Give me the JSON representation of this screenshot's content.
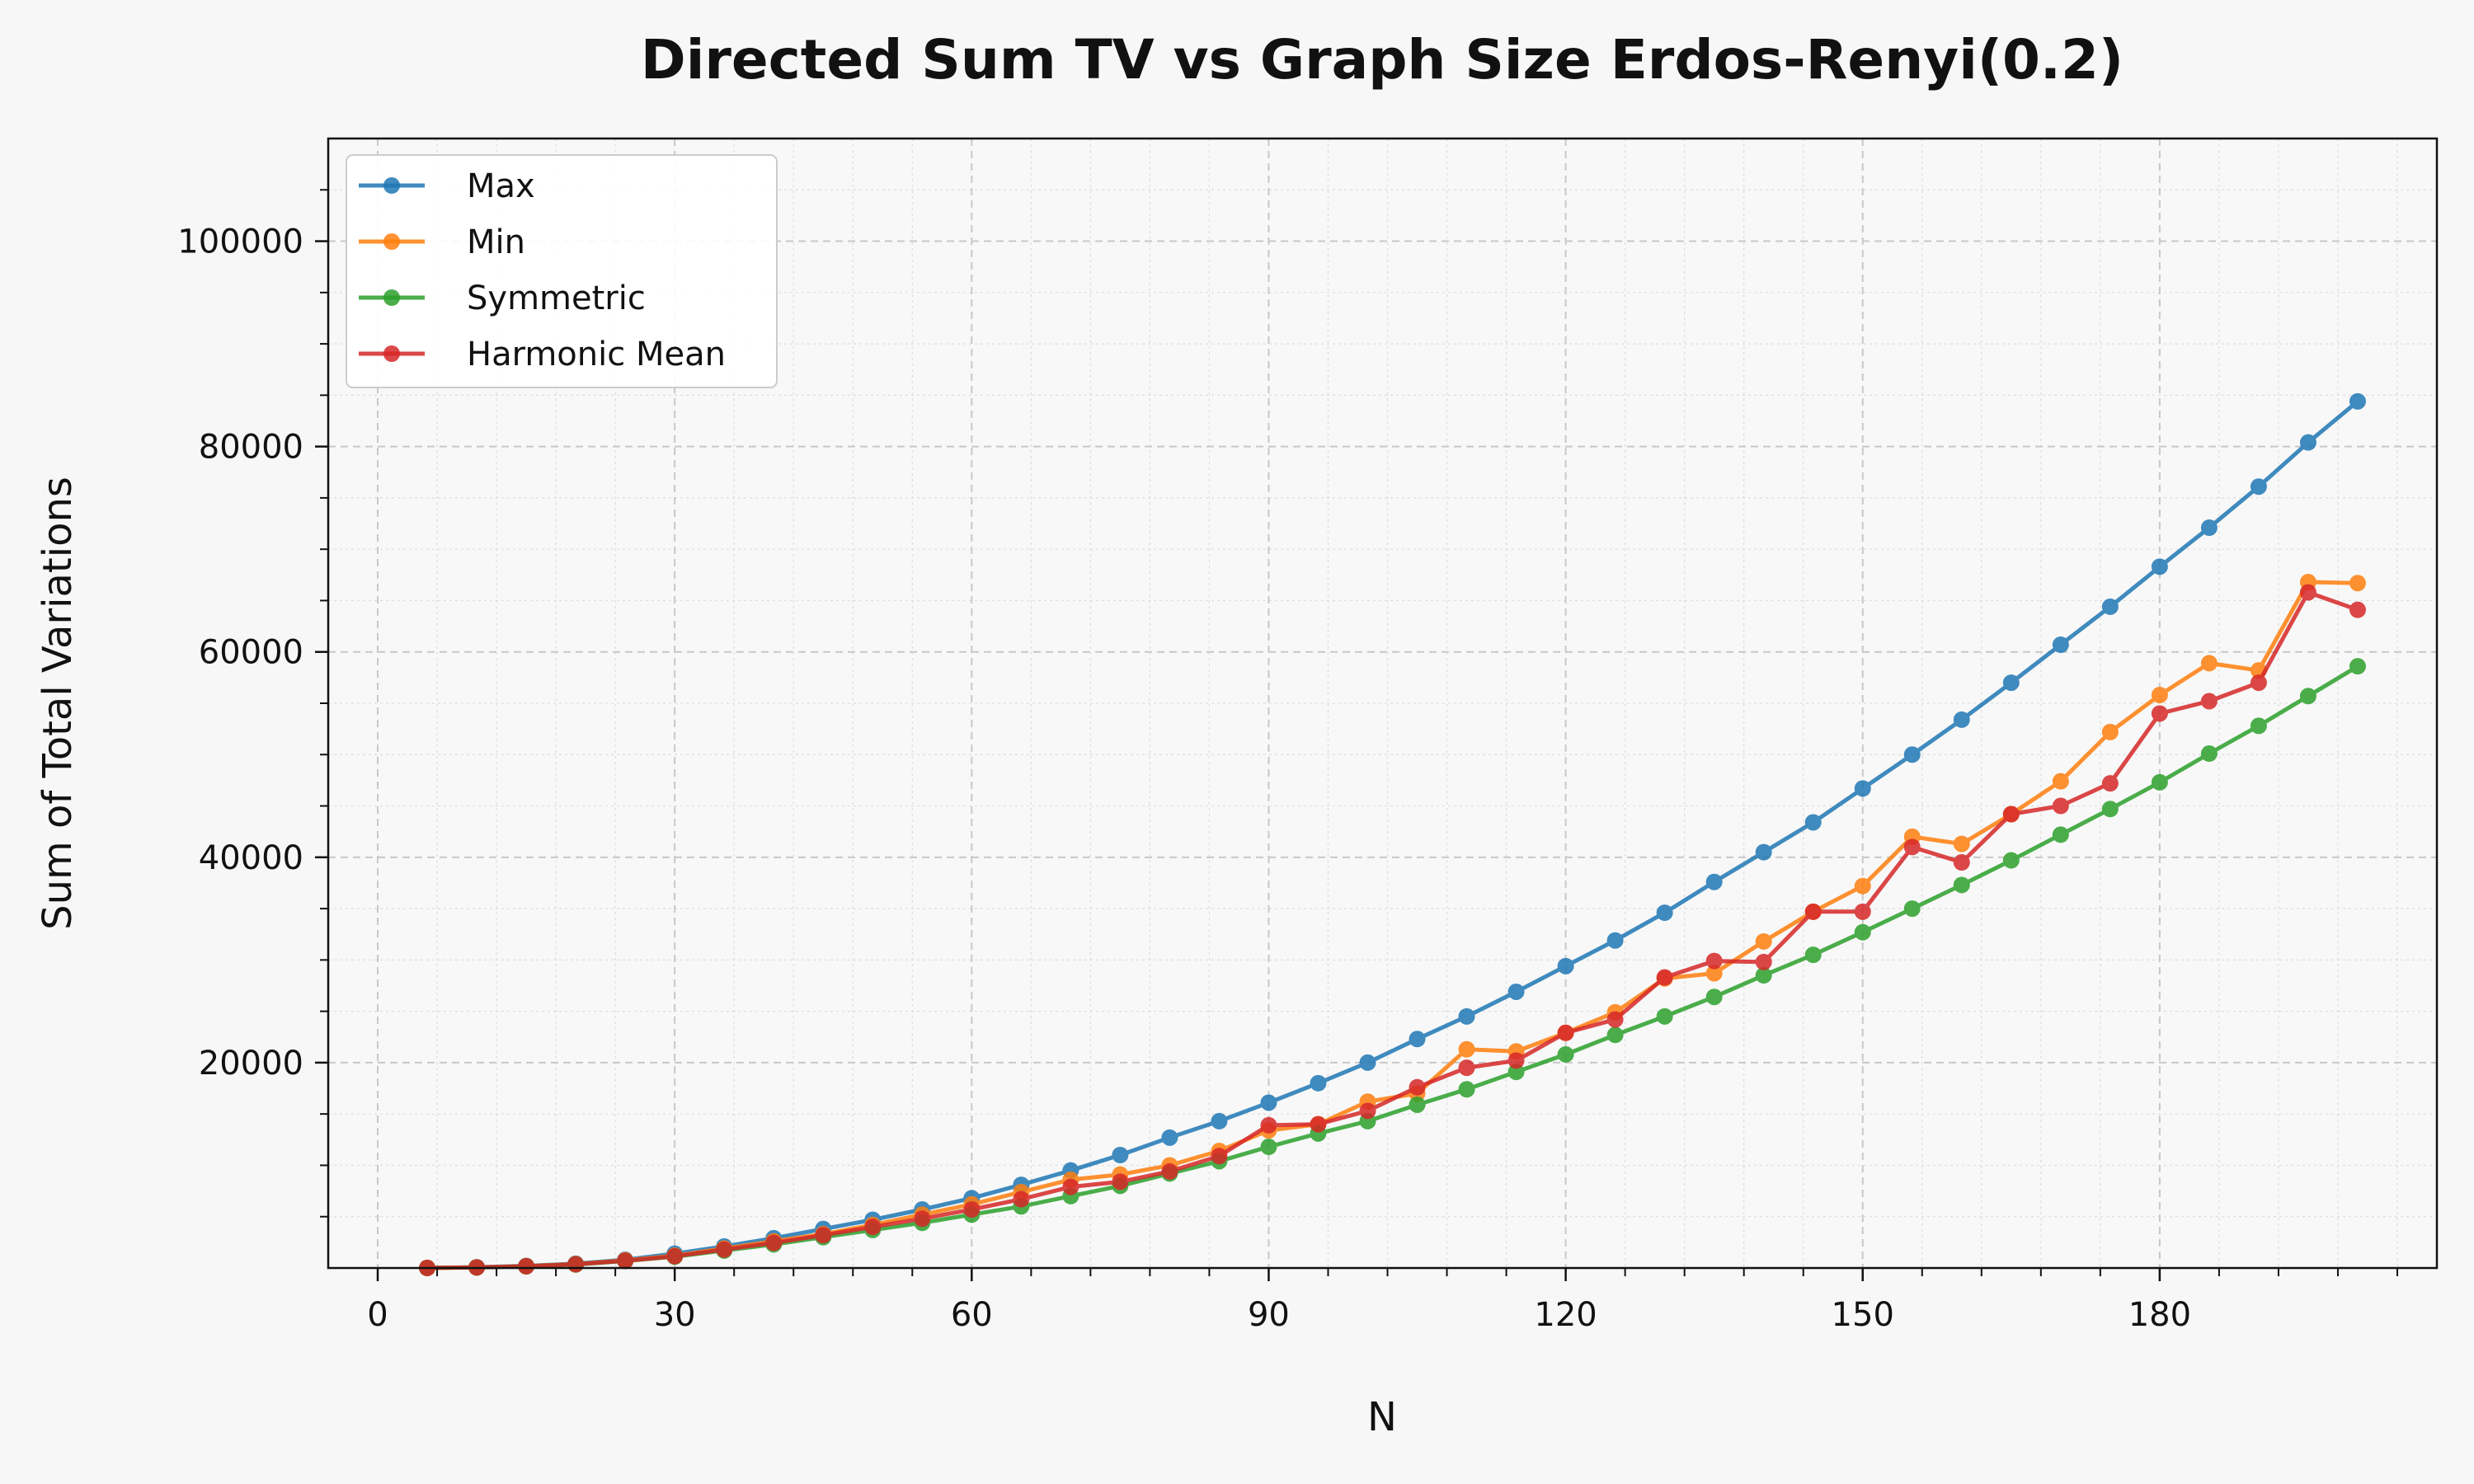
{
  "chart_data": {
    "type": "line",
    "title": "Directed Sum TV vs Graph Size Erdos-Renyi(0.2)",
    "xlabel": "N",
    "ylabel": "Sum of Total Variations",
    "xlim": [
      -5,
      208
    ],
    "ylim": [
      0,
      110000
    ],
    "xticks": [
      0,
      30,
      60,
      90,
      120,
      150,
      180
    ],
    "xtick_labels": [
      "0",
      "30",
      "60",
      "90",
      "120",
      "150",
      "180"
    ],
    "yticks": [
      20000,
      40000,
      60000,
      80000,
      100000
    ],
    "ytick_labels": [
      "20000",
      "40000",
      "60000",
      "80000",
      "100000"
    ],
    "grid": true,
    "legend_position": "top-left",
    "x": [
      5,
      10,
      15,
      20,
      25,
      30,
      35,
      40,
      45,
      50,
      55,
      60,
      65,
      70,
      75,
      80,
      85,
      90,
      95,
      100,
      105,
      110,
      115,
      120,
      125,
      130,
      135,
      140,
      145,
      150,
      155,
      160,
      165,
      170,
      175,
      180,
      185,
      190,
      195,
      200
    ],
    "series": [
      {
        "name": "Max",
        "color": "#1f77b4",
        "values": [
          8,
          70,
          200,
          420,
          800,
          1400,
          2100,
          2900,
          3800,
          4700,
          5700,
          6800,
          8100,
          9500,
          11000,
          12700,
          14300,
          16100,
          18000,
          20000,
          22300,
          24500,
          26900,
          29400,
          31900,
          34600,
          37600,
          40500,
          43400,
          46700,
          50000,
          53400,
          57000,
          60700,
          64400,
          68300,
          72100,
          76100,
          80400,
          84400
        ]
      },
      {
        "name": "Min",
        "color": "#ff7f0e",
        "values": [
          8,
          60,
          180,
          380,
          750,
          1200,
          1900,
          2600,
          3300,
          4200,
          5200,
          6200,
          7400,
          8600,
          9100,
          10000,
          11400,
          13400,
          14000,
          16200,
          17000,
          21300,
          21100,
          22900,
          24900,
          28200,
          28700,
          31800,
          34700,
          37200,
          42000,
          41300,
          44200,
          47400,
          52200,
          55800,
          58900,
          58200,
          66800,
          66700
        ]
      },
      {
        "name": "Symmetric",
        "color": "#2ca02c",
        "values": [
          6,
          50,
          160,
          340,
          680,
          1100,
          1700,
          2300,
          3000,
          3700,
          4400,
          5200,
          6000,
          7000,
          8000,
          9200,
          10400,
          11800,
          13100,
          14300,
          15900,
          17400,
          19100,
          20800,
          22700,
          24500,
          26400,
          28500,
          30500,
          32700,
          35000,
          37300,
          39700,
          42200,
          44700,
          47300,
          50100,
          52800,
          55700,
          58600
        ]
      },
      {
        "name": "Harmonic Mean",
        "color": "#d62728",
        "values": [
          7,
          55,
          170,
          360,
          700,
          1150,
          1800,
          2450,
          3200,
          4000,
          4800,
          5700,
          6700,
          7900,
          8400,
          9400,
          10900,
          13900,
          14000,
          15300,
          17600,
          19500,
          20200,
          22900,
          24200,
          28300,
          29900,
          29800,
          34700,
          34700,
          41000,
          39500,
          44200,
          45000,
          47200,
          54000,
          55200,
          57000,
          65800,
          64100
        ]
      }
    ]
  }
}
